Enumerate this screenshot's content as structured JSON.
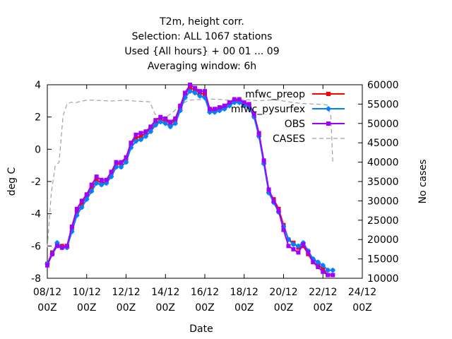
{
  "chart_data": {
    "type": "line",
    "title": [
      "T2m, height corr.",
      "Selection: ALL    1067 stations",
      "Used {All hours} + 00 01 ... 09",
      "Averaging window:  6h"
    ],
    "xlabel": "Date",
    "ylabel": "deg C",
    "y2label": "No cases",
    "xlim": [
      0,
      16
    ],
    "ylim": [
      -8,
      4
    ],
    "y2lim": [
      10000,
      60000
    ],
    "x_ticks": [
      {
        "v": 0,
        "date": "08/12",
        "hour": "00Z"
      },
      {
        "v": 2,
        "date": "10/12",
        "hour": "00Z"
      },
      {
        "v": 4,
        "date": "12/12",
        "hour": "00Z"
      },
      {
        "v": 6,
        "date": "14/12",
        "hour": "00Z"
      },
      {
        "v": 8,
        "date": "16/12",
        "hour": "00Z"
      },
      {
        "v": 10,
        "date": "18/12",
        "hour": "00Z"
      },
      {
        "v": 12,
        "date": "20/12",
        "hour": "00Z"
      },
      {
        "v": 14,
        "date": "22/12",
        "hour": "00Z"
      },
      {
        "v": 16,
        "date": "24/12",
        "hour": "00Z"
      }
    ],
    "y_ticks": [
      "-8",
      "-6",
      "-4",
      "-2",
      "0",
      "2",
      "4"
    ],
    "y2_ticks": [
      "10000",
      "15000",
      "20000",
      "25000",
      "30000",
      "35000",
      "40000",
      "45000",
      "50000",
      "55000",
      "60000"
    ],
    "legend_position": "top-right",
    "series": [
      {
        "name": "mfwc_preop",
        "color": "#ff0000",
        "marker": "square",
        "x": [
          0.0,
          0.25,
          0.5,
          0.75,
          1.0,
          1.25,
          1.5,
          1.75,
          2.0,
          2.25,
          2.5,
          2.75,
          3.0,
          3.25,
          3.5,
          3.75,
          4.0,
          4.25,
          4.5,
          4.75,
          5.0,
          5.25,
          5.5,
          5.75,
          6.0,
          6.25,
          6.5,
          6.75,
          7.0,
          7.25,
          7.5,
          7.75,
          8.0,
          8.25,
          8.5,
          8.75,
          9.0,
          9.25,
          9.5,
          9.75,
          10.0,
          10.25,
          10.5,
          10.75,
          11.0,
          11.25,
          11.5,
          11.75,
          12.0,
          12.25,
          12.5,
          12.75,
          13.0,
          13.25,
          13.5,
          13.75,
          14.0,
          14.25,
          14.5
        ],
        "y": [
          -7.1,
          -6.4,
          -5.9,
          -6.0,
          -6.0,
          -4.9,
          -3.9,
          -3.4,
          -2.9,
          -2.4,
          -1.9,
          -2.1,
          -2.0,
          -1.5,
          -0.9,
          -0.9,
          -0.6,
          0.3,
          0.7,
          0.8,
          1.0,
          1.3,
          1.6,
          1.8,
          1.8,
          1.6,
          1.8,
          2.6,
          3.4,
          3.8,
          3.7,
          3.5,
          3.4,
          2.4,
          2.4,
          2.5,
          2.6,
          2.8,
          3.0,
          3.0,
          2.8,
          2.7,
          2.1,
          0.9,
          -0.8,
          -2.6,
          -3.1,
          -3.7,
          -4.7,
          -5.6,
          -5.8,
          -6.1,
          -6.0,
          -6.5,
          -7.0,
          -7.2,
          -7.4,
          -7.8,
          -7.8
        ]
      },
      {
        "name": "mfwc_pysurfex",
        "color": "#0080ff",
        "marker": "star",
        "x": [
          0.0,
          0.25,
          0.5,
          0.75,
          1.0,
          1.25,
          1.5,
          1.75,
          2.0,
          2.25,
          2.5,
          2.75,
          3.0,
          3.25,
          3.5,
          3.75,
          4.0,
          4.25,
          4.5,
          4.75,
          5.0,
          5.25,
          5.5,
          5.75,
          6.0,
          6.25,
          6.5,
          6.75,
          7.0,
          7.25,
          7.5,
          7.75,
          8.0,
          8.25,
          8.5,
          8.75,
          9.0,
          9.25,
          9.5,
          9.75,
          10.0,
          10.25,
          10.5,
          10.75,
          11.0,
          11.25,
          11.5,
          11.75,
          12.0,
          12.25,
          12.5,
          12.75,
          13.0,
          13.25,
          13.5,
          13.75,
          14.0,
          14.25,
          14.5
        ],
        "y": [
          -7.1,
          -6.5,
          -5.8,
          -6.1,
          -6.1,
          -5.1,
          -4.1,
          -3.6,
          -3.1,
          -2.6,
          -2.1,
          -2.2,
          -2.1,
          -1.7,
          -1.1,
          -1.1,
          -0.8,
          0.1,
          0.5,
          0.6,
          0.8,
          1.1,
          1.5,
          1.7,
          1.6,
          1.4,
          1.6,
          2.4,
          3.2,
          3.6,
          3.5,
          3.3,
          3.2,
          2.3,
          2.3,
          2.4,
          2.5,
          2.7,
          2.9,
          2.9,
          2.7,
          2.6,
          2.0,
          0.8,
          -0.9,
          -2.7,
          -3.3,
          -3.9,
          -4.8,
          -5.6,
          -5.9,
          -6.0,
          -5.8,
          -6.3,
          -6.8,
          -7.0,
          -7.2,
          -7.5,
          -7.5
        ]
      },
      {
        "name": "OBS",
        "color": "#a000ff",
        "marker": "filled-square",
        "x": [
          0.0,
          0.25,
          0.5,
          0.75,
          1.0,
          1.25,
          1.5,
          1.75,
          2.0,
          2.25,
          2.5,
          2.75,
          3.0,
          3.25,
          3.5,
          3.75,
          4.0,
          4.25,
          4.5,
          4.75,
          5.0,
          5.25,
          5.5,
          5.75,
          6.0,
          6.25,
          6.5,
          6.75,
          7.0,
          7.25,
          7.5,
          7.75,
          8.0,
          8.25,
          8.5,
          8.75,
          9.0,
          9.25,
          9.5,
          9.75,
          10.0,
          10.25,
          10.5,
          10.75,
          11.0,
          11.25,
          11.5,
          11.75,
          12.0,
          12.25,
          12.5,
          12.75,
          13.0,
          13.25,
          13.5,
          13.75,
          14.0,
          14.25,
          14.5
        ],
        "y": [
          -7.2,
          -6.5,
          -6.0,
          -6.1,
          -6.0,
          -4.8,
          -3.7,
          -3.2,
          -2.8,
          -2.2,
          -1.7,
          -1.9,
          -1.9,
          -1.4,
          -0.8,
          -0.8,
          -0.5,
          0.4,
          0.9,
          1.0,
          1.1,
          1.4,
          1.8,
          2.0,
          1.9,
          1.7,
          1.9,
          2.7,
          3.5,
          4.0,
          3.8,
          3.6,
          3.6,
          2.5,
          2.5,
          2.6,
          2.7,
          2.9,
          3.1,
          3.1,
          2.9,
          2.8,
          2.2,
          1.0,
          -0.7,
          -2.5,
          -3.2,
          -3.8,
          -5.0,
          -6.0,
          -6.2,
          -6.4,
          -5.9,
          -6.4,
          -7.0,
          -7.3,
          -7.6,
          -7.8,
          -7.8
        ]
      },
      {
        "name": "CASES",
        "color": "#a0a0a4",
        "marker": "none",
        "axis": "y2",
        "x": [
          0.0,
          0.2,
          0.4,
          0.6,
          0.8,
          1.0,
          1.2,
          1.4,
          1.6,
          1.8,
          2.0,
          2.4,
          2.8,
          3.2,
          3.6,
          4.0,
          4.4,
          4.8,
          5.2,
          5.6,
          5.8,
          6.0,
          6.4,
          6.8,
          7.2,
          7.6,
          8.0,
          8.4,
          8.8,
          9.2,
          9.6,
          10.0,
          10.4,
          10.8,
          11.2,
          11.6,
          12.0,
          12.4,
          12.8,
          13.2,
          13.6,
          14.0,
          14.2,
          14.4,
          14.5
        ],
        "y": [
          18000,
          32000,
          39000,
          40000,
          52000,
          55000,
          55500,
          55300,
          55600,
          55800,
          56000,
          56000,
          55900,
          55800,
          55900,
          56000,
          55800,
          55700,
          55600,
          51000,
          50500,
          51500,
          53000,
          55000,
          56000,
          56200,
          56100,
          56300,
          56200,
          56000,
          56100,
          56200,
          56000,
          55900,
          56000,
          56100,
          55800,
          55500,
          55200,
          55100,
          55000,
          54900,
          54800,
          52000,
          40000
        ]
      }
    ]
  }
}
